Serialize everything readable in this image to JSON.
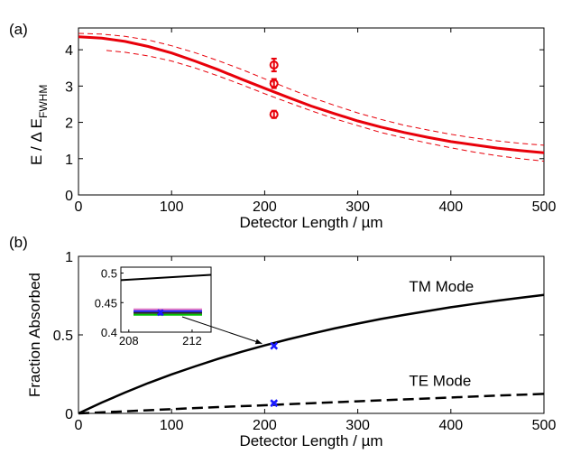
{
  "chart_data": [
    {
      "type": "line",
      "panel_label": "(a)",
      "xlabel": "Detector Length / µm",
      "ylabel": {
        "main": "E / Δ E",
        "sub": "FWHM"
      },
      "xlim": [
        0,
        500
      ],
      "ylim": [
        0,
        4.6
      ],
      "xticks": [
        "0",
        "100",
        "200",
        "300",
        "400",
        "500"
      ],
      "yticks": [
        "0",
        "1",
        "2",
        "3",
        "4"
      ],
      "grid": false,
      "color": "#e8000a",
      "series": [
        {
          "style": "solid",
          "x": [
            0,
            25,
            50,
            75,
            100,
            125,
            150,
            175,
            200,
            225,
            250,
            275,
            300,
            325,
            350,
            375,
            400,
            425,
            450,
            475,
            500
          ],
          "y": [
            4.36,
            4.32,
            4.23,
            4.09,
            3.91,
            3.69,
            3.45,
            3.19,
            2.94,
            2.69,
            2.45,
            2.24,
            2.04,
            1.87,
            1.72,
            1.59,
            1.47,
            1.38,
            1.29,
            1.22,
            1.16
          ]
        },
        {
          "style": "dashed",
          "x": [
            0,
            25,
            50,
            75,
            100,
            125,
            150,
            175,
            200,
            225,
            250,
            275,
            300,
            325,
            350,
            375,
            400,
            425,
            450,
            475,
            500
          ],
          "y": [
            4.45,
            4.43,
            4.37,
            4.27,
            4.11,
            3.92,
            3.7,
            3.46,
            3.2,
            2.94,
            2.69,
            2.47,
            2.26,
            2.08,
            1.92,
            1.79,
            1.67,
            1.57,
            1.49,
            1.42,
            1.37
          ]
        },
        {
          "style": "dashed",
          "x": [
            30,
            50,
            75,
            100,
            125,
            150,
            175,
            200,
            225,
            250,
            275,
            300,
            325,
            350,
            375,
            400,
            425,
            450,
            475,
            500
          ],
          "y": [
            3.98,
            3.93,
            3.83,
            3.69,
            3.5,
            3.28,
            3.04,
            2.79,
            2.55,
            2.32,
            2.1,
            1.91,
            1.72,
            1.57,
            1.43,
            1.3,
            1.18,
            1.08,
            1.0,
            0.93
          ]
        }
      ],
      "points": [
        {
          "x": 210,
          "y": 3.58,
          "err": 0.35
        },
        {
          "x": 210,
          "y": 3.07,
          "err": 0.25
        },
        {
          "x": 210,
          "y": 2.22,
          "err": 0.2
        }
      ]
    },
    {
      "type": "line",
      "panel_label": "(b)",
      "xlabel": "Detector Length / µm",
      "ylabel": "Fraction Absorbed",
      "xlim": [
        0,
        500
      ],
      "ylim": [
        0,
        1
      ],
      "xticks": [
        "0",
        "100",
        "200",
        "300",
        "400",
        "500"
      ],
      "yticks": [
        "0",
        "0.5",
        "1"
      ],
      "grid": false,
      "color": "#000000",
      "series": [
        {
          "name": "TM Mode",
          "style": "solid",
          "x": [
            0,
            25,
            50,
            75,
            100,
            125,
            150,
            175,
            200,
            225,
            250,
            275,
            300,
            325,
            350,
            375,
            400,
            425,
            450,
            475,
            500
          ],
          "y": [
            0,
            0.069,
            0.133,
            0.193,
            0.248,
            0.299,
            0.347,
            0.392,
            0.433,
            0.471,
            0.507,
            0.541,
            0.572,
            0.601,
            0.627,
            0.652,
            0.676,
            0.697,
            0.718,
            0.736,
            0.754
          ]
        },
        {
          "name": "TE Mode",
          "style": "dashed",
          "x": [
            0,
            50,
            100,
            150,
            200,
            250,
            300,
            350,
            400,
            450,
            500
          ],
          "y": [
            0,
            0.013,
            0.027,
            0.04,
            0.052,
            0.065,
            0.077,
            0.089,
            0.101,
            0.113,
            0.124
          ]
        }
      ],
      "annotations": [
        {
          "text": "TM Mode",
          "x": 355,
          "y": 0.775
        },
        {
          "text": "TE Mode",
          "x": 355,
          "y": 0.175
        }
      ],
      "points": [
        {
          "x": 210,
          "y": 0.43,
          "marker": "x",
          "color": "#1a1aff"
        },
        {
          "x": 210,
          "y": 0.065,
          "marker": "x",
          "color": "#1a1aff",
          "err": 0.015
        }
      ],
      "inset": {
        "xlim": [
          207.5,
          213.2
        ],
        "ylim": [
          0.4,
          0.51
        ],
        "xticks": [
          "208",
          "212"
        ],
        "yticks": [
          "0.4",
          "0.45",
          "0.5"
        ],
        "curve": {
          "x": [
            207.5,
            213.2
          ],
          "y": [
            0.488,
            0.497
          ]
        },
        "lines": [
          {
            "y": 0.4385,
            "color": "#e377c2"
          },
          {
            "y": 0.4355,
            "color": "#1a1aff"
          },
          {
            "y": 0.4325,
            "color": "#222222"
          },
          {
            "y": 0.4295,
            "color": "#00c000"
          }
        ],
        "marker": {
          "x": 210,
          "y": 0.433,
          "color": "#1a1aff",
          "err": 0.006
        }
      }
    }
  ]
}
